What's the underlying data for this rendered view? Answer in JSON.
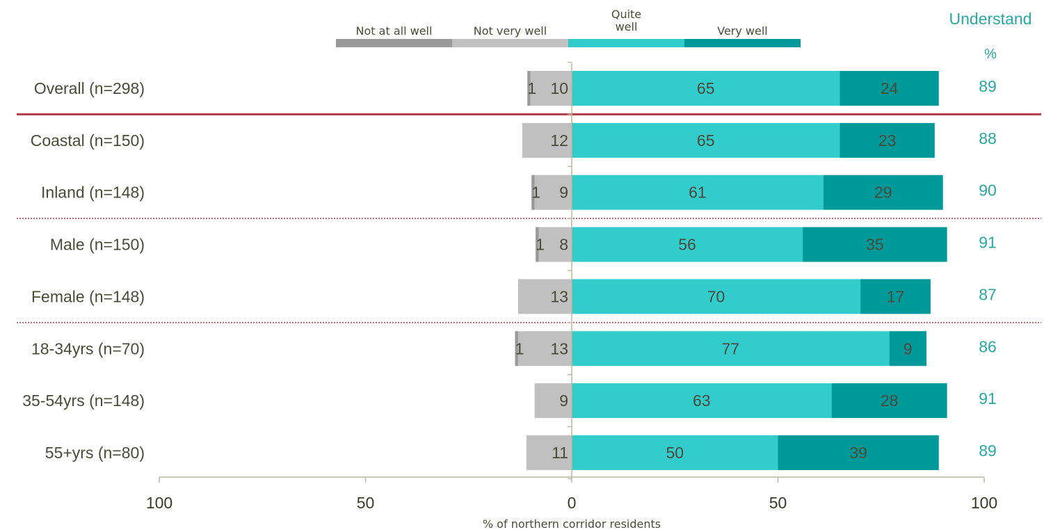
{
  "chart_data": {
    "type": "bar",
    "orientation": "horizontal-diverging",
    "categories": [
      "Overall (n=298)",
      "Coastal (n=150)",
      "Inland (n=148)",
      "Male (n=150)",
      "Female (n=148)",
      "18-34yrs (n=70)",
      "35-54yrs (n=148)",
      "55+yrs (n=80)"
    ],
    "series": [
      {
        "name": "Not at all well",
        "color": "#999999",
        "values": [
          1,
          0,
          1,
          1,
          0,
          1,
          0,
          0
        ],
        "labels": [
          "1",
          "",
          "1",
          "1",
          "",
          "1",
          "",
          ""
        ]
      },
      {
        "name": "Not very well",
        "color": "#c0c0c0",
        "values": [
          10,
          12,
          9,
          8,
          13,
          13,
          9,
          11
        ],
        "labels": [
          "10",
          "12",
          "9",
          "8",
          "13",
          "13",
          "9",
          "11"
        ]
      },
      {
        "name": "Quite well",
        "legend_lines": [
          "Quite",
          "well"
        ],
        "color": "#33cccc",
        "values": [
          65,
          65,
          61,
          56,
          70,
          77,
          63,
          50
        ],
        "labels": [
          "65",
          "65",
          "61",
          "56",
          "70",
          "77",
          "63",
          "50"
        ]
      },
      {
        "name": "Very well",
        "color": "#009999",
        "values": [
          24,
          23,
          29,
          35,
          17,
          9,
          28,
          39
        ],
        "labels": [
          "24",
          "23",
          "29",
          "35",
          "17",
          "9",
          "28",
          "39"
        ]
      }
    ],
    "understand": {
      "title": "Understand",
      "unit": "%",
      "values": [
        "89",
        "88",
        "90",
        "91",
        "87",
        "86",
        "91",
        "89"
      ]
    },
    "xlabel": "% of northern corridor residents",
    "xlim": [
      -100,
      100
    ],
    "xticks": [
      {
        "value": -100,
        "label": "100"
      },
      {
        "value": -50,
        "label": "50"
      },
      {
        "value": 0,
        "label": "0"
      },
      {
        "value": 50,
        "label": "50"
      },
      {
        "value": 100,
        "label": "100"
      }
    ],
    "separators": [
      {
        "after_index": 0,
        "style": "solid",
        "color": "#b03a48"
      },
      {
        "after_index": 2,
        "style": "dotted",
        "color": "#b03a48"
      },
      {
        "after_index": 4,
        "style": "dotted",
        "color": "#b03a48"
      }
    ],
    "axis_color": "#bdb6a0",
    "grid": false,
    "legend_position": "top"
  }
}
